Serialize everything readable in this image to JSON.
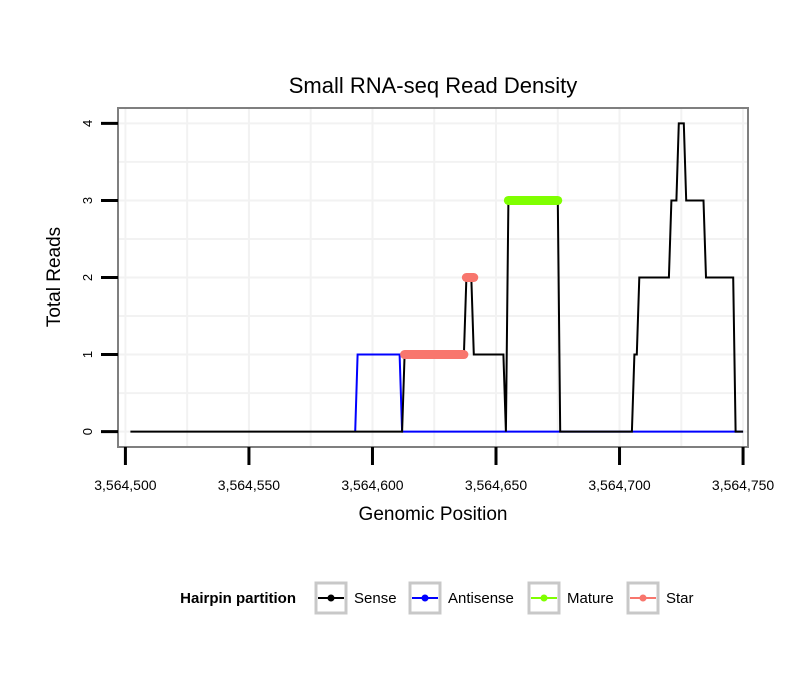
{
  "chart_data": {
    "type": "line",
    "title": "Small RNA-seq Read Density",
    "xlabel": "Genomic Position",
    "ylabel": "Total Reads",
    "xlim": [
      3564497,
      3564752
    ],
    "ylim": [
      -0.2,
      4.2
    ],
    "x_ticks": [
      3564500,
      3564550,
      3564600,
      3564650,
      3564700,
      3564750
    ],
    "x_tick_labels": [
      "3,564,500",
      "3,564,550",
      "3,564,600",
      "3,564,650",
      "3,564,700",
      "3,564,750"
    ],
    "y_ticks": [
      0,
      1,
      2,
      3,
      4
    ],
    "y_tick_labels": [
      "0",
      "1",
      "2",
      "3",
      "4"
    ],
    "grid": true,
    "legend": {
      "title": "Hairpin partition",
      "position": "bottom",
      "entries": [
        "Sense",
        "Antisense",
        "Mature",
        "Star"
      ]
    },
    "series": [
      {
        "name": "Sense",
        "color": "#000000",
        "style": "line",
        "points": [
          [
            3564502,
            0
          ],
          [
            3564612,
            0
          ],
          [
            3564613,
            1
          ],
          [
            3564636,
            1
          ],
          [
            3564637,
            1
          ],
          [
            3564638,
            2
          ],
          [
            3564640,
            2
          ],
          [
            3564641,
            1
          ],
          [
            3564653,
            1
          ],
          [
            3564654,
            0
          ],
          [
            3564655,
            3
          ],
          [
            3564675,
            3
          ],
          [
            3564676,
            0
          ],
          [
            3564705,
            0
          ],
          [
            3564706,
            1
          ],
          [
            3564707,
            1
          ],
          [
            3564708,
            2
          ],
          [
            3564720,
            2
          ],
          [
            3564721,
            3
          ],
          [
            3564723,
            3
          ],
          [
            3564724,
            4
          ],
          [
            3564726,
            4
          ],
          [
            3564727,
            3
          ],
          [
            3564734,
            3
          ],
          [
            3564735,
            2
          ],
          [
            3564746,
            2
          ],
          [
            3564747,
            0
          ],
          [
            3564750,
            0
          ]
        ]
      },
      {
        "name": "Antisense",
        "color": "#0000ff",
        "style": "line",
        "points": [
          [
            3564593,
            0
          ],
          [
            3564594,
            1
          ],
          [
            3564611,
            1
          ],
          [
            3564612,
            0
          ],
          [
            3564750,
            0
          ]
        ]
      },
      {
        "name": "Mature",
        "color": "#7fff00",
        "style": "segment",
        "segments": [
          {
            "x_start": 3564655,
            "x_end": 3564675,
            "y": 3
          }
        ]
      },
      {
        "name": "Star",
        "color": "#f8766d",
        "style": "segment",
        "segments": [
          {
            "x_start": 3564613,
            "x_end": 3564637,
            "y": 1
          },
          {
            "x_start": 3564638,
            "x_end": 3564641,
            "y": 2
          }
        ]
      }
    ]
  }
}
